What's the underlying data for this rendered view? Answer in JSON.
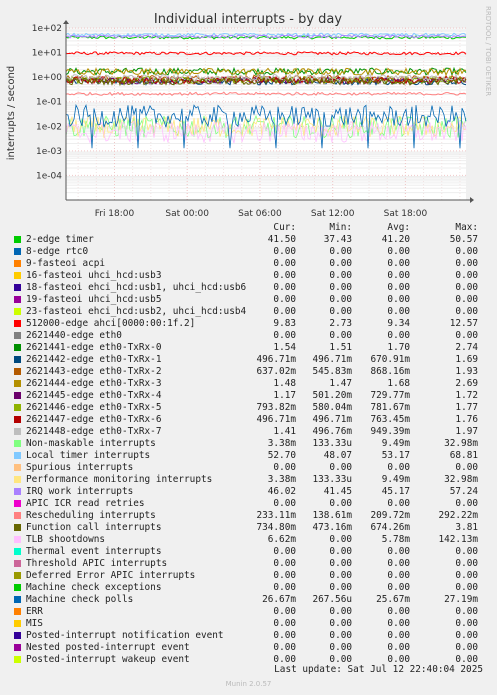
{
  "chart_data": {
    "type": "line",
    "title": "Individual interrupts - by day",
    "ylabel": "interrupts / second",
    "side_label": "RRDTOOL / TOBI OETIKER",
    "y_scale": "log",
    "ylim": [
      1e-05,
      100
    ],
    "y_ticks": [
      "1e+02",
      "1e+01",
      "1e+00",
      "1e-01",
      "1e-02",
      "1e-03",
      "1e-04"
    ],
    "y_tick_values": [
      100,
      10,
      1,
      0.1,
      0.01,
      0.001,
      0.0001
    ],
    "x_ticks": [
      "Fri 18:00",
      "Sat 00:00",
      "Sat 06:00",
      "Sat 12:00",
      "Sat 18:00"
    ],
    "x_tick_hours": [
      6,
      12,
      18,
      24,
      30
    ],
    "x_range_hours": [
      2,
      35
    ],
    "grid": true,
    "columns": [
      "Cur:",
      "Min:",
      "Avg:",
      "Max:"
    ],
    "series": [
      {
        "name": "2-edge      timer",
        "color": "#00cc00",
        "cur": "41.50",
        "min": "37.43",
        "avg": "41.20",
        "max": "50.57",
        "level": 41.2
      },
      {
        "name": "8-edge      rtc0",
        "color": "#0066b3",
        "cur": "0.00",
        "min": "0.00",
        "avg": "0.00",
        "max": "0.00",
        "level": 0
      },
      {
        "name": "9-fasteoi   acpi",
        "color": "#ff8000",
        "cur": "0.00",
        "min": "0.00",
        "avg": "0.00",
        "max": "0.00",
        "level": 0
      },
      {
        "name": "16-fasteoi   uhci_hcd:usb3",
        "color": "#ffcc00",
        "cur": "0.00",
        "min": "0.00",
        "avg": "0.00",
        "max": "0.00",
        "level": 0
      },
      {
        "name": "18-fasteoi   ehci_hcd:usb1, uhci_hcd:usb6",
        "color": "#330099",
        "cur": "0.00",
        "min": "0.00",
        "avg": "0.00",
        "max": "0.00",
        "level": 0
      },
      {
        "name": "19-fasteoi   uhci_hcd:usb5",
        "color": "#990099",
        "cur": "0.00",
        "min": "0.00",
        "avg": "0.00",
        "max": "0.00",
        "level": 0
      },
      {
        "name": "23-fasteoi   ehci_hcd:usb2, uhci_hcd:usb4",
        "color": "#ccff00",
        "cur": "0.00",
        "min": "0.00",
        "avg": "0.00",
        "max": "0.00",
        "level": 0
      },
      {
        "name": "512000-edge      ahci[0000:00:1f.2]",
        "color": "#ff0000",
        "cur": "9.83",
        "min": "2.73",
        "avg": "9.34",
        "max": "12.57",
        "level": 9.34
      },
      {
        "name": "2621440-edge      eth0",
        "color": "#808080",
        "cur": "0.00",
        "min": "0.00",
        "avg": "0.00",
        "max": "0.00",
        "level": 0
      },
      {
        "name": "2621441-edge      eth0-TxRx-0",
        "color": "#008f00",
        "cur": "1.54",
        "min": "1.51",
        "avg": "1.70",
        "max": "2.74",
        "level": 1.7
      },
      {
        "name": "2621442-edge      eth0-TxRx-1",
        "color": "#00487d",
        "cur": "496.71m",
        "min": "496.71m",
        "avg": "670.91m",
        "max": "1.69",
        "level": 0.671
      },
      {
        "name": "2621443-edge      eth0-TxRx-2",
        "color": "#b35a00",
        "cur": "637.02m",
        "min": "545.83m",
        "avg": "868.16m",
        "max": "1.93",
        "level": 0.868
      },
      {
        "name": "2621444-edge      eth0-TxRx-3",
        "color": "#b38f00",
        "cur": "1.48",
        "min": "1.47",
        "avg": "1.68",
        "max": "2.69",
        "level": 1.68
      },
      {
        "name": "2621445-edge      eth0-TxRx-4",
        "color": "#6b006b",
        "cur": "1.17",
        "min": "501.20m",
        "avg": "729.77m",
        "max": "1.72",
        "level": 0.73
      },
      {
        "name": "2621446-edge      eth0-TxRx-5",
        "color": "#8fb300",
        "cur": "793.82m",
        "min": "580.04m",
        "avg": "781.67m",
        "max": "1.77",
        "level": 0.782
      },
      {
        "name": "2621447-edge      eth0-TxRx-6",
        "color": "#b30000",
        "cur": "496.71m",
        "min": "496.71m",
        "avg": "763.45m",
        "max": "1.76",
        "level": 0.763
      },
      {
        "name": "2621448-edge      eth0-TxRx-7",
        "color": "#bebebe",
        "cur": "1.41",
        "min": "496.76m",
        "avg": "949.39m",
        "max": "1.97",
        "level": 0.949
      },
      {
        "name": "Non-maskable interrupts",
        "color": "#80ff80",
        "cur": "3.38m",
        "min": "133.33u",
        "avg": "9.49m",
        "max": "32.98m",
        "level": 0.00949
      },
      {
        "name": "Local timer interrupts",
        "color": "#80c9ff",
        "cur": "52.70",
        "min": "48.07",
        "avg": "53.17",
        "max": "68.81",
        "level": 53.17
      },
      {
        "name": "Spurious interrupts",
        "color": "#ffc080",
        "cur": "0.00",
        "min": "0.00",
        "avg": "0.00",
        "max": "0.00",
        "level": 0
      },
      {
        "name": "Performance monitoring interrupts",
        "color": "#ffe680",
        "cur": "3.38m",
        "min": "133.33u",
        "avg": "9.49m",
        "max": "32.98m",
        "level": 0.00949
      },
      {
        "name": "IRQ work interrupts",
        "color": "#aa80ff",
        "cur": "46.02",
        "min": "41.45",
        "avg": "45.17",
        "max": "57.24",
        "level": 45.17
      },
      {
        "name": "APIC ICR read retries",
        "color": "#ee00cc",
        "cur": "0.00",
        "min": "0.00",
        "avg": "0.00",
        "max": "0.00",
        "level": 0
      },
      {
        "name": "Rescheduling interrupts",
        "color": "#ff8080",
        "cur": "233.11m",
        "min": "138.61m",
        "avg": "209.72m",
        "max": "292.22m",
        "level": 0.2097
      },
      {
        "name": "Function call interrupts",
        "color": "#666600",
        "cur": "734.80m",
        "min": "473.16m",
        "avg": "674.26m",
        "max": "3.81",
        "level": 0.674
      },
      {
        "name": "TLB shootdowns",
        "color": "#ffbfff",
        "cur": "6.62m",
        "min": "0.00",
        "avg": "5.78m",
        "max": "142.13m",
        "level": 0.00578
      },
      {
        "name": "Thermal event interrupts",
        "color": "#00ffcc",
        "cur": "0.00",
        "min": "0.00",
        "avg": "0.00",
        "max": "0.00",
        "level": 0
      },
      {
        "name": "Threshold APIC interrupts",
        "color": "#cc6699",
        "cur": "0.00",
        "min": "0.00",
        "avg": "0.00",
        "max": "0.00",
        "level": 0
      },
      {
        "name": "Deferred Error APIC interrupts",
        "color": "#999900",
        "cur": "0.00",
        "min": "0.00",
        "avg": "0.00",
        "max": "0.00",
        "level": 0
      },
      {
        "name": "Machine check exceptions",
        "color": "#00cc00",
        "cur": "0.00",
        "min": "0.00",
        "avg": "0.00",
        "max": "0.00",
        "level": 0
      },
      {
        "name": "Machine check polls",
        "color": "#0066b3",
        "cur": "26.67m",
        "min": "267.56u",
        "avg": "25.67m",
        "max": "27.19m",
        "level": 0.02567
      },
      {
        "name": "ERR",
        "color": "#ff8000",
        "cur": "0.00",
        "min": "0.00",
        "avg": "0.00",
        "max": "0.00",
        "level": 0
      },
      {
        "name": "MIS",
        "color": "#ffcc00",
        "cur": "0.00",
        "min": "0.00",
        "avg": "0.00",
        "max": "0.00",
        "level": 0
      },
      {
        "name": "Posted-interrupt notification event",
        "color": "#330099",
        "cur": "0.00",
        "min": "0.00",
        "avg": "0.00",
        "max": "0.00",
        "level": 0
      },
      {
        "name": "Nested posted-interrupt event",
        "color": "#990099",
        "cur": "0.00",
        "min": "0.00",
        "avg": "0.00",
        "max": "0.00",
        "level": 0
      },
      {
        "name": "Posted-interrupt wakeup event",
        "color": "#ccff00",
        "cur": "0.00",
        "min": "0.00",
        "avg": "0.00",
        "max": "0.00",
        "level": 0
      }
    ]
  },
  "footer": {
    "last_update": "Last update: Sat Jul 12 22:40:04 2025",
    "munin": "Munin 2.0.57"
  }
}
